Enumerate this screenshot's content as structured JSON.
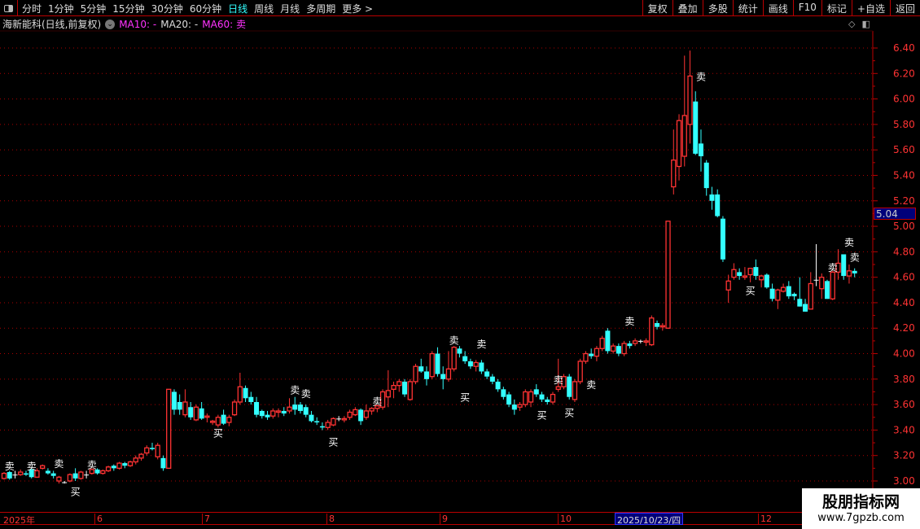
{
  "toolbar": {
    "periods": [
      "分时",
      "1分钟",
      "5分钟",
      "15分钟",
      "30分钟",
      "60分钟",
      "日线",
      "周线",
      "月线",
      "多周期",
      "更多 >"
    ],
    "active_period": "日线",
    "right_buttons": [
      "复权",
      "叠加",
      "多股",
      "统计",
      "画线",
      "F10",
      "标记",
      "+自选",
      "返回"
    ]
  },
  "info": {
    "title": "海新能科(日线,前复权)",
    "ma10": "MA10: -",
    "ma20": "MA20: -",
    "ma60": "MA60: 卖"
  },
  "price_tag": "5.04",
  "date_axis": {
    "labels": [
      "2025年",
      "6",
      "7",
      "8",
      "9",
      "10",
      "12"
    ],
    "highlight": "2025/10/23/四"
  },
  "watermark": {
    "line1": "股朋指标网",
    "line2": "www.7gpzb.com"
  },
  "colors": {
    "up": "#ff3333",
    "down": "#33ffff",
    "grid": "#b00000",
    "background": "#000000"
  },
  "chart_data": {
    "type": "candlestick",
    "ylim": [
      3.0,
      6.4
    ],
    "yticks": [
      "3.00",
      "3.20",
      "3.40",
      "3.60",
      "3.80",
      "4.00",
      "4.20",
      "4.40",
      "4.60",
      "4.80",
      "5.00",
      "5.20",
      "5.40",
      "5.60",
      "5.80",
      "6.00",
      "6.20",
      "6.40"
    ],
    "ohlc": [
      [
        3.02,
        3.07,
        3.01,
        3.06
      ],
      [
        3.07,
        3.08,
        3.01,
        3.02
      ],
      [
        3.05,
        3.08,
        3.02,
        3.05
      ],
      [
        3.05,
        3.09,
        3.04,
        3.07
      ],
      [
        3.06,
        3.08,
        3.04,
        3.05
      ],
      [
        3.09,
        3.1,
        3.02,
        3.03
      ],
      [
        3.03,
        3.1,
        3.03,
        3.08
      ],
      [
        3.1,
        3.13,
        3.09,
        3.12
      ],
      [
        3.08,
        3.1,
        3.05,
        3.06
      ],
      [
        3.06,
        3.08,
        3.02,
        3.04
      ],
      [
        3.0,
        3.04,
        2.98,
        3.03
      ],
      [
        2.99,
        3.0,
        2.98,
        2.99
      ],
      [
        3.0,
        3.06,
        2.99,
        3.05
      ],
      [
        3.06,
        3.1,
        3.0,
        3.02
      ],
      [
        3.02,
        3.08,
        3.01,
        3.07
      ],
      [
        3.05,
        3.08,
        3.02,
        3.05
      ],
      [
        3.06,
        3.1,
        3.05,
        3.09
      ],
      [
        3.09,
        3.1,
        3.05,
        3.06
      ],
      [
        3.06,
        3.09,
        3.05,
        3.08
      ],
      [
        3.08,
        3.12,
        3.07,
        3.11
      ],
      [
        3.12,
        3.13,
        3.08,
        3.1
      ],
      [
        3.1,
        3.15,
        3.09,
        3.14
      ],
      [
        3.14,
        3.15,
        3.1,
        3.12
      ],
      [
        3.12,
        3.16,
        3.11,
        3.15
      ],
      [
        3.15,
        3.2,
        3.13,
        3.18
      ],
      [
        3.18,
        3.22,
        3.16,
        3.21
      ],
      [
        3.22,
        3.28,
        3.2,
        3.26
      ],
      [
        3.26,
        3.3,
        3.24,
        3.25
      ],
      [
        3.19,
        3.3,
        3.17,
        3.28
      ],
      [
        3.18,
        3.2,
        3.08,
        3.1
      ],
      [
        3.1,
        3.72,
        3.1,
        3.72
      ],
      [
        3.7,
        3.72,
        3.52,
        3.56
      ],
      [
        3.62,
        3.68,
        3.52,
        3.56
      ],
      [
        3.52,
        3.72,
        3.5,
        3.62
      ],
      [
        3.58,
        3.62,
        3.48,
        3.5
      ],
      [
        3.48,
        3.6,
        3.47,
        3.58
      ],
      [
        3.57,
        3.62,
        3.48,
        3.49
      ],
      [
        3.5,
        3.53,
        3.46,
        3.51
      ],
      [
        3.46,
        3.48,
        3.44,
        3.47
      ],
      [
        3.44,
        3.52,
        3.42,
        3.5
      ],
      [
        3.52,
        3.56,
        3.44,
        3.45
      ],
      [
        3.46,
        3.52,
        3.43,
        3.5
      ],
      [
        3.52,
        3.64,
        3.51,
        3.62
      ],
      [
        3.62,
        3.85,
        3.6,
        3.74
      ],
      [
        3.73,
        3.75,
        3.62,
        3.65
      ],
      [
        3.66,
        3.7,
        3.6,
        3.62
      ],
      [
        3.62,
        3.66,
        3.5,
        3.52
      ],
      [
        3.55,
        3.56,
        3.49,
        3.51
      ],
      [
        3.52,
        3.55,
        3.48,
        3.5
      ],
      [
        3.51,
        3.57,
        3.49,
        3.55
      ],
      [
        3.54,
        3.57,
        3.5,
        3.55
      ],
      [
        3.55,
        3.58,
        3.51,
        3.53
      ],
      [
        3.55,
        3.65,
        3.53,
        3.58
      ],
      [
        3.6,
        3.66,
        3.52,
        3.56
      ],
      [
        3.6,
        3.62,
        3.53,
        3.55
      ],
      [
        3.58,
        3.6,
        3.5,
        3.52
      ],
      [
        3.52,
        3.55,
        3.46,
        3.47
      ],
      [
        3.47,
        3.5,
        3.44,
        3.46
      ],
      [
        3.43,
        3.46,
        3.4,
        3.42
      ],
      [
        3.42,
        3.48,
        3.4,
        3.46
      ],
      [
        3.44,
        3.5,
        3.43,
        3.49
      ],
      [
        3.49,
        3.51,
        3.47,
        3.49
      ],
      [
        3.48,
        3.51,
        3.46,
        3.49
      ],
      [
        3.5,
        3.56,
        3.48,
        3.54
      ],
      [
        3.52,
        3.58,
        3.51,
        3.56
      ],
      [
        3.56,
        3.57,
        3.44,
        3.47
      ],
      [
        3.5,
        3.6,
        3.48,
        3.55
      ],
      [
        3.55,
        3.58,
        3.52,
        3.57
      ],
      [
        3.57,
        3.6,
        3.54,
        3.59
      ],
      [
        3.58,
        3.72,
        3.56,
        3.7
      ],
      [
        3.66,
        3.87,
        3.58,
        3.71
      ],
      [
        3.72,
        3.78,
        3.65,
        3.75
      ],
      [
        3.75,
        3.8,
        3.7,
        3.78
      ],
      [
        3.78,
        3.8,
        3.66,
        3.68
      ],
      [
        3.64,
        3.8,
        3.63,
        3.78
      ],
      [
        3.78,
        3.92,
        3.76,
        3.9
      ],
      [
        3.9,
        3.96,
        3.85,
        3.86
      ],
      [
        3.86,
        3.9,
        3.75,
        3.8
      ],
      [
        3.82,
        4.02,
        3.8,
        4.0
      ],
      [
        4.0,
        4.05,
        3.82,
        3.84
      ],
      [
        3.84,
        3.9,
        3.72,
        3.8
      ],
      [
        3.8,
        4.02,
        3.78,
        3.88
      ],
      [
        3.88,
        4.06,
        3.86,
        4.05
      ],
      [
        4.04,
        4.06,
        3.97,
        4.0
      ],
      [
        3.98,
        4.02,
        3.92,
        3.94
      ],
      [
        3.94,
        3.96,
        3.88,
        3.9
      ],
      [
        3.9,
        3.95,
        3.86,
        3.93
      ],
      [
        3.93,
        3.95,
        3.84,
        3.86
      ],
      [
        3.86,
        3.88,
        3.8,
        3.82
      ],
      [
        3.82,
        3.84,
        3.76,
        3.78
      ],
      [
        3.78,
        3.8,
        3.7,
        3.72
      ],
      [
        3.72,
        3.74,
        3.64,
        3.66
      ],
      [
        3.68,
        3.7,
        3.58,
        3.6
      ],
      [
        3.6,
        3.64,
        3.52,
        3.56
      ],
      [
        3.58,
        3.62,
        3.55,
        3.6
      ],
      [
        3.6,
        3.72,
        3.58,
        3.7
      ],
      [
        3.62,
        3.72,
        3.58,
        3.7
      ],
      [
        3.72,
        3.76,
        3.66,
        3.68
      ],
      [
        3.68,
        3.7,
        3.62,
        3.64
      ],
      [
        3.64,
        3.66,
        3.6,
        3.62
      ],
      [
        3.62,
        3.7,
        3.6,
        3.68
      ],
      [
        3.72,
        3.96,
        3.7,
        3.74
      ],
      [
        3.74,
        3.84,
        3.72,
        3.82
      ],
      [
        3.82,
        3.84,
        3.64,
        3.66
      ],
      [
        3.64,
        3.8,
        3.62,
        3.78
      ],
      [
        3.78,
        3.96,
        3.76,
        3.94
      ],
      [
        3.94,
        4.02,
        3.92,
        4.0
      ],
      [
        4.0,
        4.04,
        3.96,
        3.98
      ],
      [
        3.98,
        4.06,
        3.94,
        4.04
      ],
      [
        4.04,
        4.14,
        4.02,
        4.12
      ],
      [
        4.18,
        4.2,
        4.0,
        4.02
      ],
      [
        4.02,
        4.08,
        4.0,
        4.06
      ],
      [
        4.06,
        4.08,
        3.98,
        4.0
      ],
      [
        4.0,
        4.1,
        3.98,
        4.08
      ],
      [
        4.08,
        4.1,
        4.04,
        4.06
      ],
      [
        4.08,
        4.12,
        4.06,
        4.1
      ],
      [
        4.1,
        4.11,
        4.08,
        4.1
      ],
      [
        4.09,
        4.12,
        4.06,
        4.1
      ],
      [
        4.07,
        4.3,
        4.06,
        4.28
      ],
      [
        4.24,
        4.26,
        4.19,
        4.21
      ],
      [
        4.21,
        4.24,
        4.18,
        4.22
      ],
      [
        4.2,
        5.04,
        4.2,
        5.04
      ],
      [
        5.31,
        5.76,
        5.25,
        5.52
      ],
      [
        5.47,
        5.88,
        5.36,
        5.83
      ],
      [
        5.55,
        6.34,
        5.47,
        5.87
      ],
      [
        5.8,
        6.38,
        5.65,
        6.18
      ],
      [
        5.98,
        6.06,
        5.56,
        5.57
      ],
      [
        5.65,
        5.76,
        5.43,
        5.55
      ],
      [
        5.5,
        5.52,
        5.24,
        5.3
      ],
      [
        5.25,
        5.31,
        5.13,
        5.2
      ],
      [
        5.25,
        5.29,
        5.07,
        5.08
      ],
      [
        5.06,
        5.08,
        4.72,
        4.74
      ],
      [
        4.5,
        4.62,
        4.4,
        4.57
      ],
      [
        4.6,
        4.71,
        4.58,
        4.66
      ],
      [
        4.64,
        4.67,
        4.58,
        4.61
      ],
      [
        4.6,
        4.68,
        4.58,
        4.61
      ],
      [
        4.62,
        4.67,
        4.56,
        4.67
      ],
      [
        4.68,
        4.74,
        4.58,
        4.61
      ],
      [
        4.58,
        4.62,
        4.52,
        4.61
      ],
      [
        4.62,
        4.63,
        4.51,
        4.52
      ],
      [
        4.51,
        4.55,
        4.41,
        4.43
      ],
      [
        4.42,
        4.51,
        4.35,
        4.5
      ],
      [
        4.49,
        4.55,
        4.48,
        4.52
      ],
      [
        4.53,
        4.57,
        4.43,
        4.45
      ],
      [
        4.47,
        4.48,
        4.42,
        4.45
      ],
      [
        4.43,
        4.6,
        4.37,
        4.37
      ],
      [
        4.39,
        4.43,
        4.33,
        4.33
      ],
      [
        4.35,
        4.64,
        4.35,
        4.55
      ],
      [
        4.58,
        4.86,
        4.53,
        4.58
      ],
      [
        4.51,
        4.63,
        4.43,
        4.6
      ],
      [
        4.57,
        4.58,
        4.43,
        4.43
      ],
      [
        4.43,
        4.65,
        4.42,
        4.64
      ],
      [
        4.64,
        4.82,
        4.58,
        4.71
      ],
      [
        4.78,
        4.78,
        4.58,
        4.61
      ],
      [
        4.61,
        4.7,
        4.55,
        4.65
      ],
      [
        4.65,
        4.67,
        4.6,
        4.63
      ]
    ],
    "signals": [
      {
        "type": "卖",
        "index": 1,
        "price": 3.12
      },
      {
        "type": "卖",
        "index": 5,
        "price": 3.12
      },
      {
        "type": "卖",
        "index": 10,
        "price": 3.14
      },
      {
        "type": "卖",
        "index": 16,
        "price": 3.13
      },
      {
        "type": "卖",
        "index": 53,
        "price": 3.72
      },
      {
        "type": "卖",
        "index": 55,
        "price": 3.69
      },
      {
        "type": "卖",
        "index": 68,
        "price": 3.63
      },
      {
        "type": "卖",
        "index": 82,
        "price": 4.11
      },
      {
        "type": "卖",
        "index": 87,
        "price": 4.08
      },
      {
        "type": "卖",
        "index": 101,
        "price": 3.8
      },
      {
        "type": "卖",
        "index": 107,
        "price": 3.76
      },
      {
        "type": "卖",
        "index": 114,
        "price": 4.26
      },
      {
        "type": "卖",
        "index": 127,
        "price": 6.18
      },
      {
        "type": "卖",
        "index": 151,
        "price": 4.68
      },
      {
        "type": "卖",
        "index": 154,
        "price": 4.88
      },
      {
        "type": "卖",
        "index": 155,
        "price": 4.76
      },
      {
        "type": "买",
        "index": 13,
        "price": 2.92
      },
      {
        "type": "买",
        "index": 39,
        "price": 3.38
      },
      {
        "type": "买",
        "index": 60,
        "price": 3.31
      },
      {
        "type": "买",
        "index": 84,
        "price": 3.66
      },
      {
        "type": "买",
        "index": 98,
        "price": 3.52
      },
      {
        "type": "买",
        "index": 103,
        "price": 3.54
      },
      {
        "type": "买",
        "index": 136,
        "price": 4.5
      }
    ]
  }
}
